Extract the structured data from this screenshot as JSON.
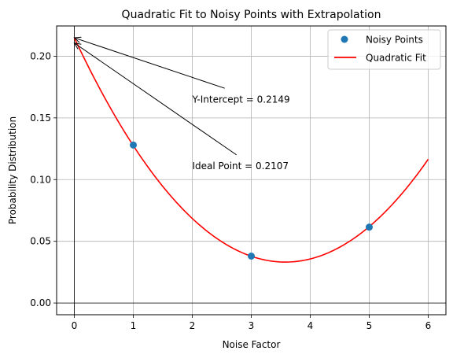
{
  "chart_data": {
    "type": "scatter",
    "title": "Quadratic Fit to Noisy Points with Extrapolation",
    "xlabel": "Noise Factor",
    "ylabel": "Probability Distribution",
    "xlim": [
      -0.3,
      6.3
    ],
    "ylim": [
      -0.0095,
      0.2245
    ],
    "x_ticks": [
      0,
      1,
      2,
      3,
      4,
      5,
      6
    ],
    "x_tick_labels": [
      "0",
      "1",
      "2",
      "3",
      "4",
      "5",
      "6"
    ],
    "y_ticks": [
      0.0,
      0.05,
      0.1,
      0.15,
      0.2
    ],
    "y_tick_labels": [
      "0.00",
      "0.05",
      "0.10",
      "0.15",
      "0.20"
    ],
    "grid": true,
    "legend_position": "top-right",
    "points": {
      "name": "Noisy Points",
      "x": [
        1,
        3,
        5
      ],
      "y": [
        0.128,
        0.038,
        0.0615
      ],
      "color": "#1f77b4"
    },
    "fit": {
      "name": "Quadratic Fit",
      "coefficients": {
        "a": 0.0142,
        "b": -0.1016,
        "c": 0.2149
      },
      "x_range": [
        0,
        6
      ],
      "color": "#ff0000"
    },
    "reference_lines": {
      "y": 0,
      "x": 0
    },
    "annotations": [
      {
        "text": "Y-Intercept = 0.2149",
        "point": [
          0,
          0.2149
        ],
        "text_pos": [
          2.0,
          0.165
        ],
        "arrow_tail": [
          2.55,
          0.174
        ]
      },
      {
        "text": "Ideal Point = 0.2107",
        "point": [
          0,
          0.2107
        ],
        "text_pos": [
          2.0,
          0.111
        ],
        "arrow_tail": [
          2.75,
          0.12
        ]
      }
    ]
  }
}
